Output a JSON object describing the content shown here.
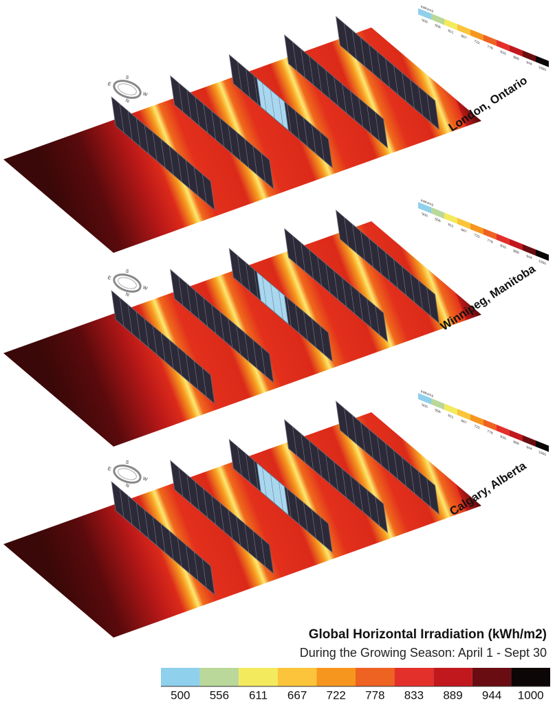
{
  "panels": [
    {
      "label": "London, Ontario"
    },
    {
      "label": "Winnipeg, Manitoba"
    },
    {
      "label": "Calgary, Alberta"
    }
  ],
  "compass": [
    "S",
    "W",
    "N",
    "E"
  ],
  "legend": {
    "title": "Global Horizontal Irradiation (kWh/m2)",
    "subtitle": "During the Growing Season: April 1 - Sept 30",
    "inset_unit": "kWh/m2",
    "ticks": [
      500,
      556,
      611,
      667,
      722,
      778,
      833,
      889,
      944,
      1000
    ],
    "colors": [
      "#8fd0ec",
      "#b9d89a",
      "#f3ea5e",
      "#fbc43a",
      "#f7961f",
      "#ee6222",
      "#e4302a",
      "#c1181e",
      "#6a0d12",
      "#0c0606"
    ]
  }
}
